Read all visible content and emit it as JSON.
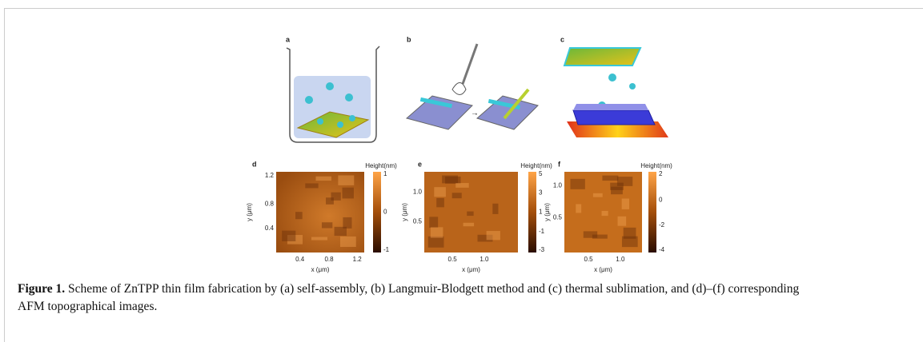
{
  "panels": [
    {
      "label": "a"
    },
    {
      "label": "b"
    },
    {
      "label": "c"
    }
  ],
  "afm": [
    {
      "label": "d",
      "y_axis_label": "y (μm)",
      "x_axis_label": "x (μm)",
      "yticks": [
        "1.2",
        "0.8",
        "0.4"
      ],
      "xticks": [
        "0.4",
        "0.8",
        "1.2"
      ],
      "colorbar_title": "Height(nm)",
      "colorbar_ticks": [
        "1",
        "0",
        "-1"
      ]
    },
    {
      "label": "e",
      "y_axis_label": "y (μm)",
      "x_axis_label": "x (μm)",
      "yticks": [
        "1.0",
        "0.5"
      ],
      "xticks": [
        "0.5",
        "1.0"
      ],
      "colorbar_title": "Height(nm)",
      "colorbar_ticks": [
        "5",
        "3",
        "1",
        "-1",
        "-3"
      ]
    },
    {
      "label": "f",
      "y_axis_label": "y (μm)",
      "x_axis_label": "x (μm)",
      "yticks": [
        "1.0",
        "0.5"
      ],
      "xticks": [
        "0.5",
        "1.0"
      ],
      "colorbar_title": "Height(nm)",
      "colorbar_ticks": [
        "2",
        "0",
        "-2",
        "-4"
      ]
    }
  ],
  "caption": {
    "label": "Figure 1.",
    "text": "Scheme of ZnTPP thin film fabrication by (a) self-assembly, (b) Langmuir-Blodgett method and (c) thermal sublimation, and (d)–(f) corresponding AFM topographical images."
  }
}
